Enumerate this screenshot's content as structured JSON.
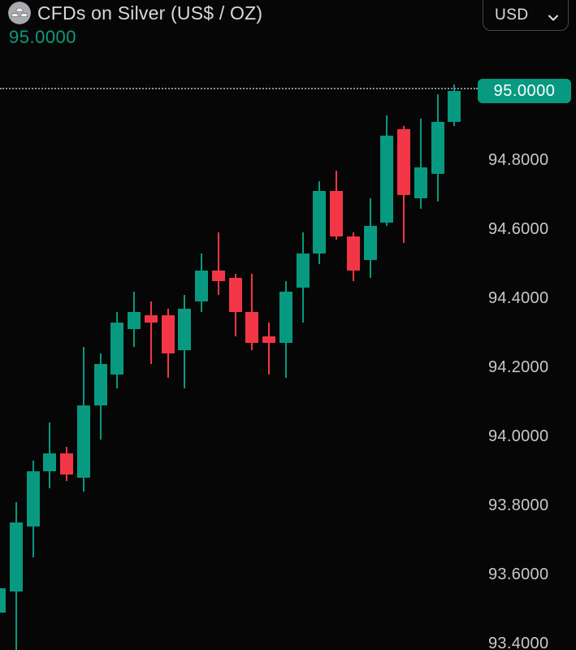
{
  "header": {
    "title": "CFDs on Silver (US$ / OZ)",
    "price": "95.0000",
    "currency_button": {
      "label": "USD",
      "icon": "chevron-down-icon"
    },
    "symbol_icon": "silver-ingots-icon"
  },
  "price_axis": {
    "labels": [
      "94.8000",
      "94.6000",
      "94.4000",
      "94.2000",
      "94.0000",
      "93.8000",
      "93.6000",
      "93.4000"
    ],
    "current_price_badge": "95.0000"
  },
  "chart_data": {
    "type": "candlestick",
    "title": "CFDs on Silver (US$ / OZ)",
    "current_price": 95.0,
    "quote_currency": "USD",
    "colors": {
      "up": "#089981",
      "down": "#f23645",
      "badge": "#089981"
    },
    "y_axis": {
      "min": 93.38,
      "max": 95.05,
      "tick_interval": 0.2,
      "ref_price": 95.0,
      "ticks": [
        94.8,
        94.6,
        94.4,
        94.2,
        94.0,
        93.8,
        93.6,
        93.4
      ]
    },
    "x_axis": {
      "visible": false
    },
    "grid": false,
    "candles": [
      {
        "o": 93.49,
        "h": 93.56,
        "l": 93.48,
        "c": 93.56
      },
      {
        "o": 93.55,
        "h": 93.81,
        "l": 93.38,
        "c": 93.75
      },
      {
        "o": 93.74,
        "h": 93.93,
        "l": 93.65,
        "c": 93.9
      },
      {
        "o": 93.9,
        "h": 94.04,
        "l": 93.85,
        "c": 93.95
      },
      {
        "o": 93.95,
        "h": 93.97,
        "l": 93.87,
        "c": 93.89
      },
      {
        "o": 93.88,
        "h": 94.26,
        "l": 93.84,
        "c": 94.09
      },
      {
        "o": 94.09,
        "h": 94.24,
        "l": 93.99,
        "c": 94.21
      },
      {
        "o": 94.18,
        "h": 94.36,
        "l": 94.14,
        "c": 94.33
      },
      {
        "o": 94.31,
        "h": 94.42,
        "l": 94.26,
        "c": 94.36
      },
      {
        "o": 94.35,
        "h": 94.39,
        "l": 94.21,
        "c": 94.33
      },
      {
        "o": 94.35,
        "h": 94.37,
        "l": 94.17,
        "c": 94.24
      },
      {
        "o": 94.25,
        "h": 94.41,
        "l": 94.14,
        "c": 94.37
      },
      {
        "o": 94.39,
        "h": 94.53,
        "l": 94.36,
        "c": 94.48
      },
      {
        "o": 94.48,
        "h": 94.59,
        "l": 94.41,
        "c": 94.45
      },
      {
        "o": 94.46,
        "h": 94.47,
        "l": 94.29,
        "c": 94.36
      },
      {
        "o": 94.36,
        "h": 94.47,
        "l": 94.25,
        "c": 94.27
      },
      {
        "o": 94.29,
        "h": 94.33,
        "l": 94.18,
        "c": 94.27
      },
      {
        "o": 94.27,
        "h": 94.45,
        "l": 94.17,
        "c": 94.42
      },
      {
        "o": 94.43,
        "h": 94.59,
        "l": 94.33,
        "c": 94.53
      },
      {
        "o": 94.53,
        "h": 94.74,
        "l": 94.5,
        "c": 94.71
      },
      {
        "o": 94.71,
        "h": 94.77,
        "l": 94.57,
        "c": 94.58
      },
      {
        "o": 94.58,
        "h": 94.59,
        "l": 94.45,
        "c": 94.48
      },
      {
        "o": 94.51,
        "h": 94.69,
        "l": 94.46,
        "c": 94.61
      },
      {
        "o": 94.62,
        "h": 94.93,
        "l": 94.61,
        "c": 94.87
      },
      {
        "o": 94.89,
        "h": 94.9,
        "l": 94.56,
        "c": 94.7
      },
      {
        "o": 94.69,
        "h": 94.92,
        "l": 94.66,
        "c": 94.78
      },
      {
        "o": 94.76,
        "h": 94.99,
        "l": 94.68,
        "c": 94.91
      },
      {
        "o": 94.91,
        "h": 95.02,
        "l": 94.9,
        "c": 95.0
      }
    ]
  }
}
